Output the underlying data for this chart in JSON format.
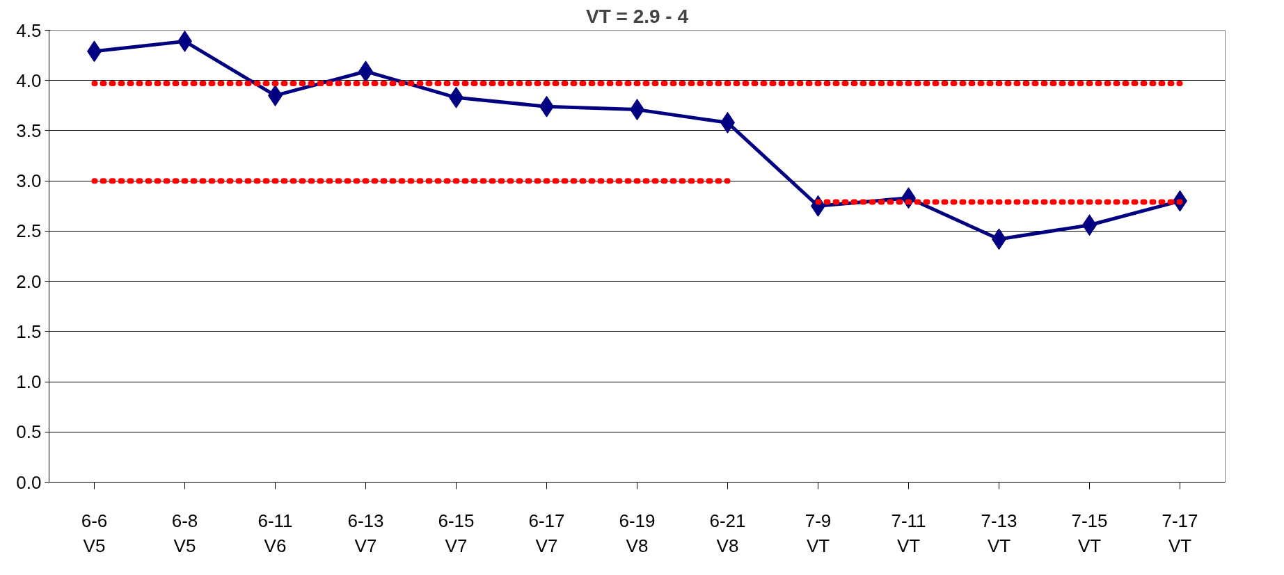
{
  "chart_data": {
    "type": "line",
    "title": "VT = 2.9 - 4",
    "categories": [
      "6-6\nV5",
      "6-8\nV5",
      "6-11\nV6",
      "6-13\nV7",
      "6-15\nV7",
      "6-17\nV7",
      "6-19\nV8",
      "6-21\nV8",
      "7-9\nVT",
      "7-11\nVT",
      "7-13\nVT",
      "7-15\nVT",
      "7-17\nVT"
    ],
    "series": [
      {
        "color": "#000080",
        "marker": "diamond",
        "line_style": "solid",
        "values": [
          4.29,
          4.39,
          3.85,
          4.09,
          3.83,
          3.74,
          3.71,
          3.58,
          2.75,
          2.83,
          2.42,
          2.56,
          2.8
        ]
      },
      {
        "color": "#ff0000",
        "marker": "none",
        "line_style": "dotted",
        "values": [
          3.97,
          3.97,
          3.97,
          3.97,
          3.97,
          3.97,
          3.97,
          3.97,
          3.97,
          3.97,
          3.97,
          3.97,
          3.97
        ]
      },
      {
        "color": "#ff0000",
        "marker": "none",
        "line_style": "dotted",
        "values": [
          3.0,
          3.0,
          3.0,
          3.0,
          3.0,
          3.0,
          3.0,
          3.0,
          null,
          null,
          null,
          null,
          null
        ]
      },
      {
        "color": "#ff0000",
        "marker": "none",
        "line_style": "dotted",
        "values": [
          null,
          null,
          null,
          null,
          null,
          null,
          null,
          null,
          2.79,
          2.79,
          2.79,
          2.79,
          2.79
        ]
      }
    ],
    "ylim": [
      0,
      4.5
    ],
    "yticks": [
      {
        "value": 0,
        "label": "0.0"
      },
      {
        "value": 0.5,
        "label": "0.5"
      },
      {
        "value": 1,
        "label": "1.0"
      },
      {
        "value": 1.5,
        "label": "1.5"
      },
      {
        "value": 2,
        "label": "2.0"
      },
      {
        "value": 2.5,
        "label": "2.5"
      },
      {
        "value": 3,
        "label": "3.0"
      },
      {
        "value": 3.5,
        "label": "3.5"
      },
      {
        "value": 4,
        "label": "4.0"
      },
      {
        "value": 4.5,
        "label": "4.5"
      }
    ],
    "grid": "y",
    "legend": false
  }
}
